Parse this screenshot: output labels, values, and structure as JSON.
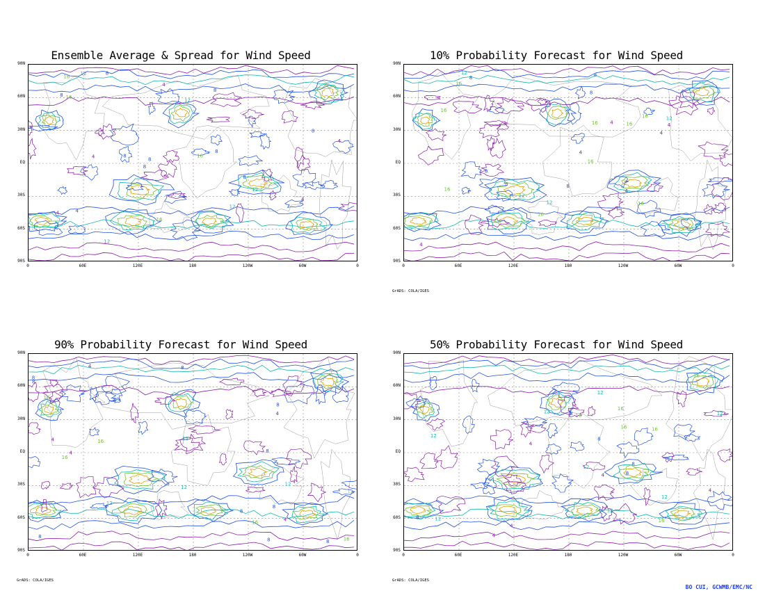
{
  "panels": [
    {
      "title": "Ensemble Average & Spread for Wind Speed",
      "credit": ""
    },
    {
      "title": "10% Probability Forecast for Wind Speed",
      "credit": "GrADS: COLA/IGES"
    },
    {
      "title": "90% Probability Forecast for Wind Speed",
      "credit": "GrADS: COLA/IGES"
    },
    {
      "title": "50% Probability Forecast for Wind Speed",
      "credit": "GrADS: COLA/IGES"
    }
  ],
  "y_labels": [
    "90N",
    "60N",
    "30N",
    "EQ",
    "30S",
    "60S",
    "90S"
  ],
  "x_labels": [
    "0",
    "60E",
    "120E",
    "180",
    "120W",
    "60W",
    "0"
  ],
  "contour_labels": [
    "4",
    "8",
    "12",
    "16"
  ],
  "contour_colors": {
    "4": "#8a1aa8",
    "8": "#1f4fe0",
    "12": "#10b8b0",
    "16": "#70c030",
    "20": "#e0a000"
  },
  "footer": "BO CUI, GCWMB/EMC/NC"
}
